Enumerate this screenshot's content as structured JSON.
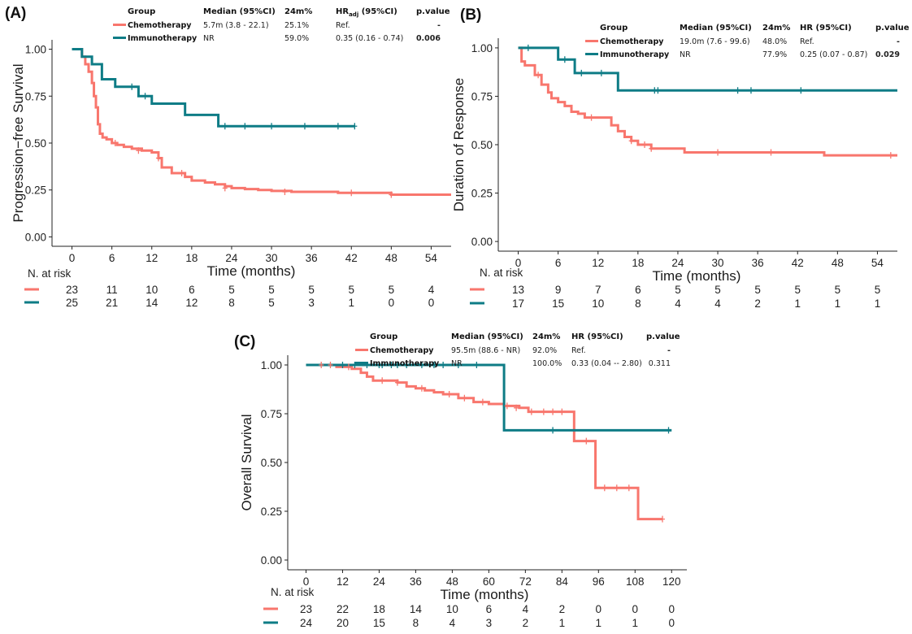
{
  "colors": {
    "chemotherapy": "#F8766D",
    "immunotherapy": "#0E7C86"
  },
  "chart_data": [
    {
      "id": "A",
      "type": "line",
      "panel_label": "(A)",
      "ylabel": "Progression−free Survival",
      "xlabel": "Time (months)",
      "xlim": [
        -3,
        57
      ],
      "ylim": [
        -0.05,
        1.05
      ],
      "x_ticks": [
        0,
        6,
        12,
        18,
        24,
        30,
        36,
        42,
        48,
        54
      ],
      "y_ticks": [
        0,
        0.25,
        0.5,
        0.75,
        1
      ],
      "y_tick_labels": [
        "0.00",
        "0.25",
        "0.50",
        "0.75",
        "1.00"
      ],
      "series": [
        {
          "name": "Chemotherapy",
          "color_key": "chemotherapy",
          "x": [
            0,
            1.5,
            2,
            2.5,
            3,
            3.3,
            3.6,
            3.9,
            4.2,
            4.6,
            5.2,
            6,
            6.8,
            7.8,
            9,
            10.5,
            12,
            13,
            13.5,
            15,
            17,
            18,
            20,
            21.5,
            23,
            24,
            26,
            28,
            30,
            33,
            40,
            48,
            57
          ],
          "y": [
            1,
            0.96,
            0.92,
            0.88,
            0.82,
            0.75,
            0.69,
            0.6,
            0.55,
            0.53,
            0.52,
            0.5,
            0.49,
            0.48,
            0.47,
            0.46,
            0.45,
            0.42,
            0.37,
            0.34,
            0.32,
            0.3,
            0.29,
            0.28,
            0.27,
            0.26,
            0.255,
            0.25,
            0.245,
            0.24,
            0.235,
            0.225,
            0.225
          ]
        },
        {
          "name": "Immunotherapy",
          "color_key": "immunotherapy",
          "x": [
            0,
            1.5,
            3,
            4.5,
            6.5,
            10,
            12,
            17,
            22,
            42.5
          ],
          "y": [
            1,
            0.96,
            0.92,
            0.84,
            0.8,
            0.75,
            0.71,
            0.65,
            0.59,
            0.59
          ]
        }
      ],
      "censor": [
        {
          "series": 0,
          "x": [
            6.5,
            10,
            13,
            16.5,
            23,
            32,
            42,
            48
          ],
          "y": [
            0.5,
            0.46,
            0.42,
            0.34,
            0.26,
            0.24,
            0.235,
            0.225
          ]
        },
        {
          "series": 1,
          "x": [
            9,
            11,
            23,
            26,
            30,
            35,
            40,
            42.5
          ],
          "y": [
            0.8,
            0.75,
            0.59,
            0.59,
            0.59,
            0.59,
            0.59,
            0.59
          ]
        }
      ],
      "risk_table": {
        "title": "N. at risk",
        "rows": [
          {
            "color_key": "chemotherapy",
            "values": [
              "23",
              "11",
              "10",
              "6",
              "5",
              "5",
              "5",
              "5",
              "5",
              "4"
            ]
          },
          {
            "color_key": "immunotherapy",
            "values": [
              "25",
              "21",
              "14",
              "12",
              "8",
              "5",
              "3",
              "1",
              "0",
              "0"
            ]
          }
        ]
      },
      "legend": {
        "headers": [
          "Group",
          "Median (95%CI)",
          "24m%",
          "HR",
          "adj",
          " (95%CI)",
          "p.value"
        ],
        "rows": [
          {
            "group": "Chemotherapy",
            "color_key": "chemotherapy",
            "median": "5.7m (3.8 - 22.1)",
            "pct24": "25.1%",
            "hr": "Ref.",
            "p": "-",
            "p_bold": true
          },
          {
            "group": "Immunotherapy",
            "color_key": "immunotherapy",
            "median": "NR",
            "pct24": "59.0%",
            "hr": "0.35  (0.16 - 0.74)",
            "p": "0.006",
            "p_bold": true
          }
        ]
      }
    },
    {
      "id": "B",
      "type": "line",
      "panel_label": "(B)",
      "ylabel": "Duration of Response",
      "xlabel": "Time (months)",
      "xlim": [
        -3,
        57
      ],
      "ylim": [
        -0.05,
        1.05
      ],
      "x_ticks": [
        0,
        6,
        12,
        18,
        24,
        30,
        36,
        42,
        48,
        54
      ],
      "y_ticks": [
        0,
        0.25,
        0.5,
        0.75,
        1
      ],
      "y_tick_labels": [
        "0.00",
        "0.25",
        "0.50",
        "0.75",
        "1.00"
      ],
      "series": [
        {
          "name": "Chemotherapy",
          "color_key": "chemotherapy",
          "x": [
            0,
            0.5,
            1,
            2.5,
            3.5,
            4.5,
            5,
            6,
            7,
            8,
            9,
            10,
            14,
            15,
            16,
            17,
            18,
            20,
            25,
            46,
            57
          ],
          "y": [
            1,
            0.93,
            0.91,
            0.86,
            0.81,
            0.77,
            0.74,
            0.72,
            0.7,
            0.67,
            0.66,
            0.64,
            0.6,
            0.57,
            0.54,
            0.52,
            0.5,
            0.48,
            0.46,
            0.445,
            0.445
          ]
        },
        {
          "name": "Immunotherapy",
          "color_key": "immunotherapy",
          "x": [
            0,
            6,
            8.5,
            15,
            57
          ],
          "y": [
            1,
            0.94,
            0.87,
            0.78,
            0.78
          ]
        }
      ],
      "censor": [
        {
          "series": 0,
          "x": [
            3,
            11,
            17,
            19,
            20,
            30,
            38,
            56
          ],
          "y": [
            0.86,
            0.64,
            0.52,
            0.5,
            0.48,
            0.46,
            0.46,
            0.445
          ]
        },
        {
          "series": 1,
          "x": [
            1.5,
            7,
            9.5,
            12.5,
            20.5,
            21,
            33,
            35,
            42.5
          ],
          "y": [
            1,
            0.94,
            0.87,
            0.87,
            0.78,
            0.78,
            0.78,
            0.78,
            0.78
          ]
        }
      ],
      "risk_table": {
        "title": "N. at risk",
        "rows": [
          {
            "color_key": "chemotherapy",
            "values": [
              "13",
              "9",
              "7",
              "6",
              "5",
              "5",
              "5",
              "5",
              "5",
              "5"
            ]
          },
          {
            "color_key": "immunotherapy",
            "values": [
              "17",
              "15",
              "10",
              "8",
              "4",
              "4",
              "2",
              "1",
              "1",
              "1"
            ]
          }
        ]
      },
      "legend": {
        "headers": [
          "Group",
          "Median (95%CI)",
          "24m%",
          "HR (95%CI)",
          "",
          "",
          "p.value"
        ],
        "rows": [
          {
            "group": "Chemotherapy",
            "color_key": "chemotherapy",
            "median": "19.0m (7.6 - 99.6)",
            "pct24": "48.0%",
            "hr": "Ref.",
            "p": "-",
            "p_bold": true
          },
          {
            "group": "Immunotherapy",
            "color_key": "immunotherapy",
            "median": "NR",
            "pct24": "77.9%",
            "hr": "0.25  (0.07 - 0.87)",
            "p": "0.029",
            "p_bold": true
          }
        ]
      }
    },
    {
      "id": "C",
      "type": "line",
      "panel_label": "(C)",
      "ylabel": "Overall Survival",
      "xlabel": "Time (months)",
      "xlim": [
        -6,
        125
      ],
      "ylim": [
        -0.05,
        1.05
      ],
      "x_ticks": [
        0,
        12,
        24,
        36,
        48,
        60,
        72,
        84,
        96,
        108,
        120
      ],
      "y_ticks": [
        0,
        0.25,
        0.5,
        0.75,
        1
      ],
      "y_tick_labels": [
        "0.00",
        "0.25",
        "0.50",
        "0.75",
        "1.00"
      ],
      "series": [
        {
          "name": "Chemotherapy",
          "color_key": "chemotherapy",
          "x": [
            0,
            10,
            15,
            18,
            20,
            22,
            30,
            33,
            36,
            39,
            42,
            45,
            50,
            55,
            60,
            65,
            70,
            73,
            86,
            88,
            95,
            109,
            117
          ],
          "y": [
            1,
            0.99,
            0.98,
            0.96,
            0.94,
            0.92,
            0.91,
            0.89,
            0.88,
            0.87,
            0.86,
            0.85,
            0.83,
            0.81,
            0.8,
            0.79,
            0.78,
            0.76,
            0.76,
            0.61,
            0.37,
            0.21,
            0.21
          ]
        },
        {
          "name": "Immunotherapy",
          "color_key": "immunotherapy",
          "x": [
            0,
            65,
            120
          ],
          "y": [
            1,
            0.665,
            0.665
          ]
        }
      ],
      "censor": [
        {
          "series": 0,
          "x": [
            5,
            8,
            14,
            25,
            30,
            38,
            47,
            52,
            58,
            66,
            69,
            74,
            78,
            81,
            84,
            92,
            98,
            102,
            106,
            117
          ],
          "y": [
            1,
            1,
            0.99,
            0.92,
            0.91,
            0.88,
            0.85,
            0.83,
            0.81,
            0.79,
            0.78,
            0.76,
            0.76,
            0.76,
            0.76,
            0.61,
            0.37,
            0.37,
            0.37,
            0.21
          ]
        },
        {
          "series": 1,
          "x": [
            12,
            16,
            20,
            24,
            25,
            28,
            30,
            33,
            38,
            42,
            45,
            50,
            56,
            81,
            119
          ],
          "y": [
            1,
            1,
            1,
            1,
            1,
            1,
            1,
            1,
            1,
            1,
            1,
            1,
            1,
            0.665,
            0.665
          ]
        }
      ],
      "risk_table": {
        "title": "N. at risk",
        "rows": [
          {
            "color_key": "chemotherapy",
            "values": [
              "23",
              "22",
              "18",
              "14",
              "10",
              "6",
              "4",
              "2",
              "0",
              "0",
              "0"
            ]
          },
          {
            "color_key": "immunotherapy",
            "values": [
              "24",
              "20",
              "15",
              "8",
              "4",
              "3",
              "2",
              "1",
              "1",
              "1",
              "0"
            ]
          }
        ]
      },
      "legend": {
        "headers": [
          "Group",
          "Median (95%CI)",
          "24m%",
          "HR (95%CI)",
          "",
          "",
          "p.value"
        ],
        "rows": [
          {
            "group": "Chemotherapy",
            "color_key": "chemotherapy",
            "median": "95.5m (88.6 - NR)",
            "pct24": "92.0%",
            "hr": "Ref.",
            "p": "-",
            "p_bold": true
          },
          {
            "group": "Immunotherapy",
            "color_key": "immunotherapy",
            "median": "NR",
            "pct24": "100.0%",
            "hr": "0.33  (0.04 -- 2.80)",
            "p": "0.311",
            "p_bold": false
          }
        ]
      }
    }
  ]
}
